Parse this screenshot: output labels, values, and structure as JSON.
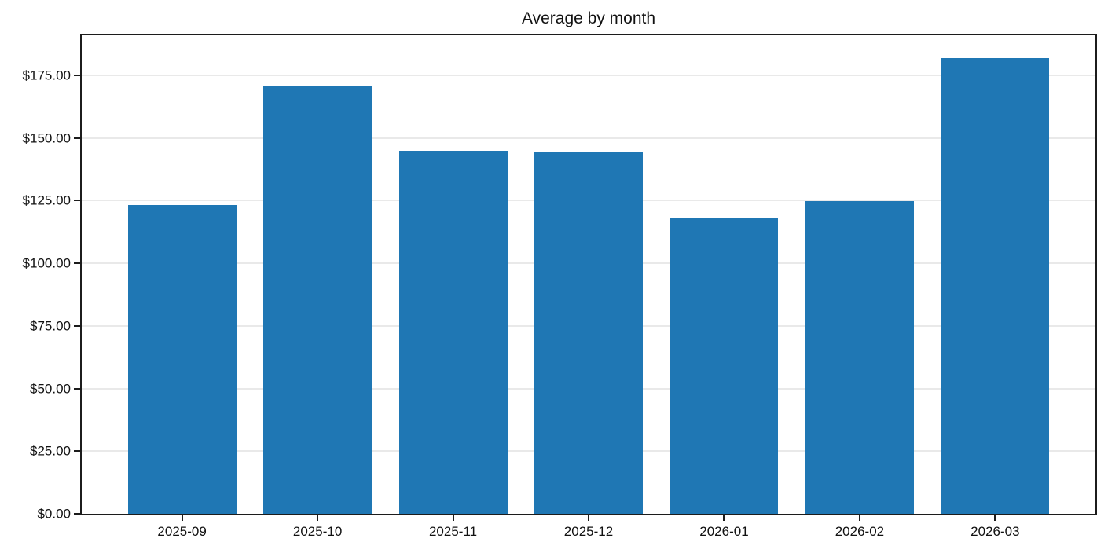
{
  "chart_data": {
    "type": "bar",
    "title": "Average by month",
    "categories": [
      "2025-09",
      "2025-10",
      "2025-11",
      "2025-12",
      "2026-01",
      "2026-02",
      "2026-03"
    ],
    "values": [
      123.3,
      170.9,
      144.9,
      144.3,
      117.9,
      124.8,
      181.9
    ],
    "xlabel": "",
    "ylabel": "",
    "ylim": [
      0,
      191
    ],
    "y_tick_values": [
      0,
      25,
      50,
      75,
      100,
      125,
      150,
      175
    ],
    "y_tick_labels": [
      "$0.00",
      "$25.00",
      "$50.00",
      "$75.00",
      "$100.00",
      "$125.00",
      "$150.00",
      "$175.00"
    ],
    "grid": "horizontal",
    "legend_position": "none",
    "bar_width": 0.8,
    "bar_color": "#1f77b4"
  },
  "colors": {
    "bar": "#1f77b4",
    "gridline": "#e9e9e9",
    "spine": "#1c1c1c",
    "background": "#ffffff",
    "text": "#111111"
  }
}
